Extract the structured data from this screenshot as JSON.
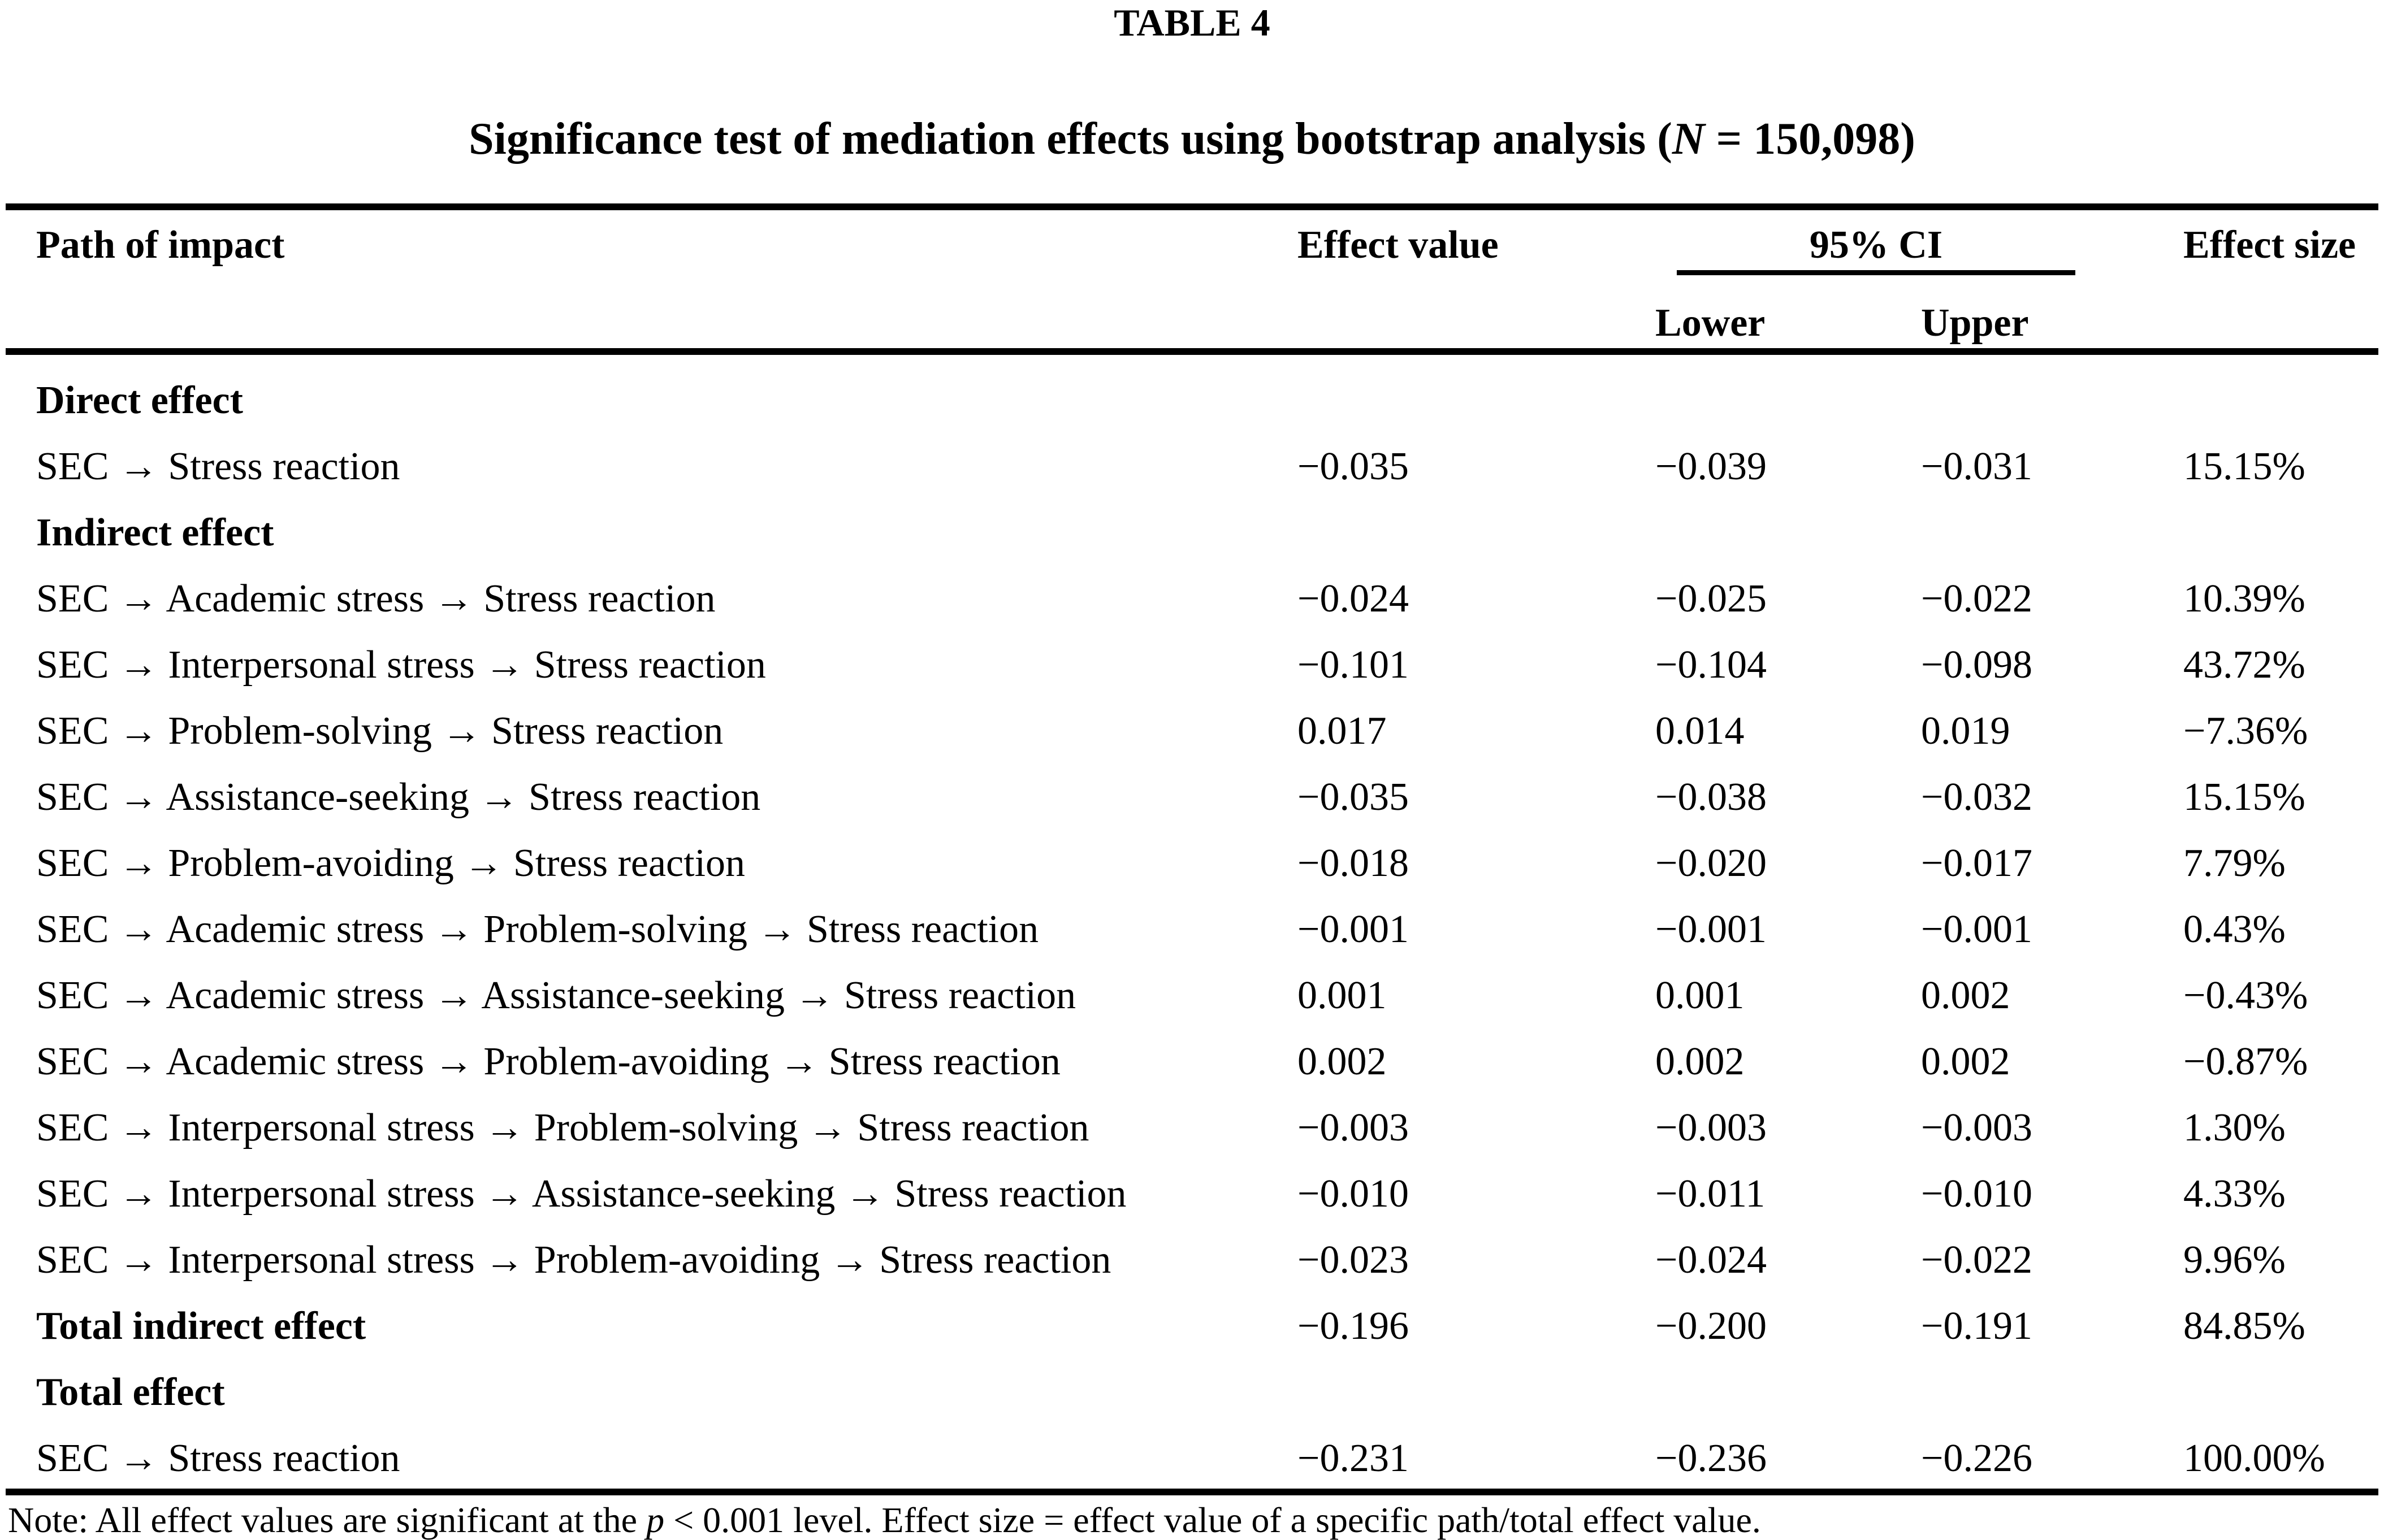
{
  "title": {
    "table_label": "TABLE 4",
    "caption_prefix": "Significance test of mediation effects using bootstrap analysis (",
    "caption_n": "N",
    "caption_suffix": " = 150,098)"
  },
  "header": {
    "path": "Path of impact",
    "effect_value": "Effect value",
    "ci": "95% CI",
    "lower": "Lower",
    "upper": "Upper",
    "effect_size": "Effect size"
  },
  "rows": [
    {
      "label": "Direct effect",
      "effect_value": "",
      "lower": "",
      "upper": "",
      "effect_size": ""
    },
    {
      "label": "SEC → Stress reaction",
      "effect_value": "−0.035",
      "lower": "−0.039",
      "upper": "−0.031",
      "effect_size": "15.15%"
    },
    {
      "label": "Indirect effect",
      "effect_value": "",
      "lower": "",
      "upper": "",
      "effect_size": ""
    },
    {
      "label": "SEC → Academic stress → Stress reaction",
      "effect_value": "−0.024",
      "lower": "−0.025",
      "upper": "−0.022",
      "effect_size": "10.39%"
    },
    {
      "label": "SEC → Interpersonal stress → Stress reaction",
      "effect_value": "−0.101",
      "lower": "−0.104",
      "upper": "−0.098",
      "effect_size": "43.72%"
    },
    {
      "label": "SEC → Problem-solving → Stress reaction",
      "effect_value": "0.017",
      "lower": "0.014",
      "upper": "0.019",
      "effect_size": "−7.36%"
    },
    {
      "label": "SEC → Assistance-seeking → Stress reaction",
      "effect_value": "−0.035",
      "lower": "−0.038",
      "upper": "−0.032",
      "effect_size": "15.15%"
    },
    {
      "label": "SEC → Problem-avoiding → Stress reaction",
      "effect_value": "−0.018",
      "lower": "−0.020",
      "upper": "−0.017",
      "effect_size": "7.79%"
    },
    {
      "label": "SEC → Academic stress → Problem-solving → Stress reaction",
      "effect_value": "−0.001",
      "lower": "−0.001",
      "upper": "−0.001",
      "effect_size": "0.43%"
    },
    {
      "label": "SEC → Academic stress → Assistance-seeking → Stress reaction",
      "effect_value": "0.001",
      "lower": "0.001",
      "upper": "0.002",
      "effect_size": "−0.43%"
    },
    {
      "label": "SEC → Academic stress → Problem-avoiding → Stress reaction",
      "effect_value": "0.002",
      "lower": "0.002",
      "upper": "0.002",
      "effect_size": "−0.87%"
    },
    {
      "label": "SEC → Interpersonal stress → Problem-solving → Stress reaction",
      "effect_value": "−0.003",
      "lower": "−0.003",
      "upper": "−0.003",
      "effect_size": "1.30%"
    },
    {
      "label": "SEC → Interpersonal stress → Assistance-seeking → Stress reaction",
      "effect_value": "−0.010",
      "lower": "−0.011",
      "upper": "−0.010",
      "effect_size": "4.33%"
    },
    {
      "label": "SEC → Interpersonal stress → Problem-avoiding → Stress reaction",
      "effect_value": "−0.023",
      "lower": "−0.024",
      "upper": "−0.022",
      "effect_size": "9.96%"
    },
    {
      "label": "Total indirect effect",
      "effect_value": "−0.196",
      "lower": "−0.200",
      "upper": "−0.191",
      "effect_size": "84.85%"
    },
    {
      "label": "Total effect",
      "effect_value": "",
      "lower": "",
      "upper": "",
      "effect_size": ""
    },
    {
      "label": "SEC → Stress reaction",
      "effect_value": "−0.231",
      "lower": "−0.236",
      "upper": "−0.226",
      "effect_size": "100.00%"
    }
  ],
  "note": {
    "prefix": "Note: All effect values are significant at the ",
    "p": "p",
    "suffix": " < 0.001 level. Effect size = effect value of a specific path/total effect value."
  },
  "colors": {
    "text": "#000000",
    "background": "#ffffff",
    "rule": "#000000"
  }
}
